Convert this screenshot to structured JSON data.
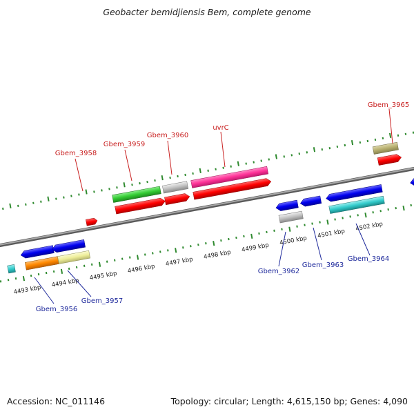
{
  "title": "Geobacter bemidjiensis Bem, complete genome",
  "footer": {
    "accession": "Accession: NC_011146",
    "summary": "Topology: circular; Length: 4,615,150 bp; Genes: 4,090"
  },
  "kbp_ticks": [
    "4493 kbp",
    "4494 kbp",
    "4495 kbp",
    "4496 kbp",
    "4497 kbp",
    "4498 kbp",
    "4499 kbp",
    "4500 kbp",
    "4501 kbp",
    "4502 kbp"
  ],
  "genes_top": [
    {
      "name": "Gbem_3958"
    },
    {
      "name": "Gbem_3959"
    },
    {
      "name": "Gbem_3960"
    },
    {
      "name": "uvrC"
    },
    {
      "name": "Gbem_3965"
    }
  ],
  "genes_bottom": [
    {
      "name": "Gbem_3956"
    },
    {
      "name": "Gbem_3957"
    },
    {
      "name": "Gbem_3962"
    },
    {
      "name": "Gbem_3963"
    },
    {
      "name": "Gbem_3964"
    }
  ],
  "colors": {
    "backbone": "#808080",
    "red": "#ff0000",
    "blue": "#0000ee",
    "green": "#33cc33",
    "gray": "#c0c0c0",
    "magenta": "#ff3399",
    "cyan": "#33cccc",
    "orange": "#ff8800",
    "khaki": "#eeee99",
    "olive": "#b8b070",
    "tick": "#2f8a2f"
  }
}
